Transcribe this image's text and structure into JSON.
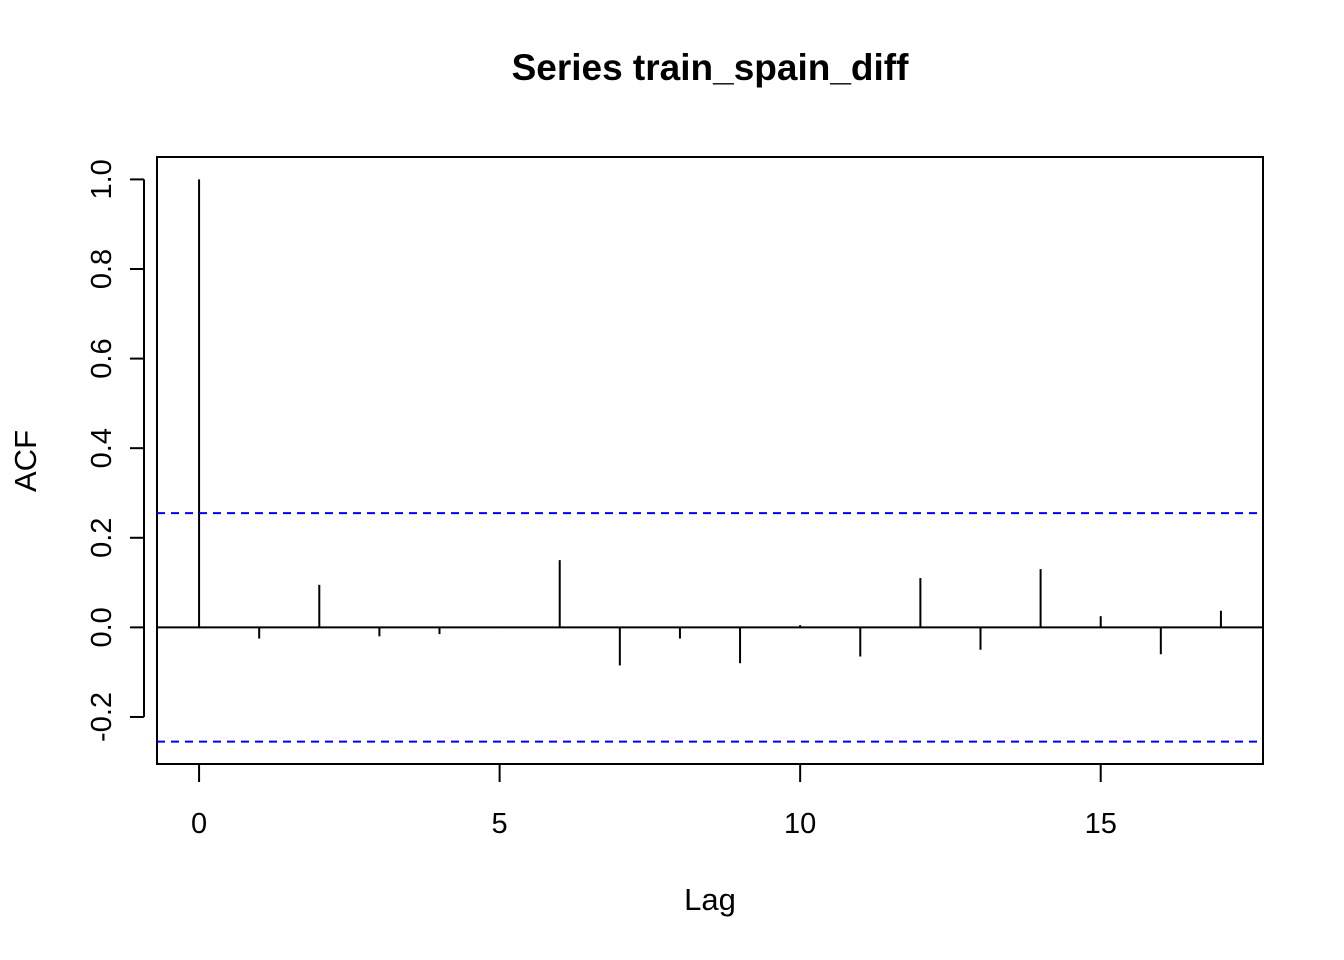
{
  "chart_data": {
    "type": "bar",
    "title": "Series  train_spain_diff",
    "xlabel": "Lag",
    "ylabel": "ACF",
    "xlim": [
      -0.7,
      17.7
    ],
    "ylim": [
      -0.305,
      1.05
    ],
    "x_ticks": [
      0,
      5,
      10,
      15
    ],
    "y_ticks": [
      -0.2,
      0.0,
      0.2,
      0.4,
      0.6,
      0.8,
      1.0
    ],
    "grid": false,
    "legend": "none",
    "zero_line": 0.0,
    "confidence_bounds": [
      0.255,
      -0.255
    ],
    "series": [
      {
        "lags": [
          0,
          1,
          2,
          3,
          4,
          5,
          6,
          7,
          8,
          9,
          10,
          11,
          12,
          13,
          14,
          15,
          16,
          17
        ],
        "values": [
          1.0,
          -0.025,
          0.095,
          -0.02,
          -0.015,
          0.002,
          0.15,
          -0.085,
          -0.025,
          -0.08,
          0.005,
          -0.065,
          0.11,
          -0.05,
          0.13,
          0.025,
          -0.06,
          0.037
        ]
      }
    ],
    "colors": {
      "bars": "#000000",
      "bounds": "#0000ff",
      "frame": "#000000"
    }
  }
}
